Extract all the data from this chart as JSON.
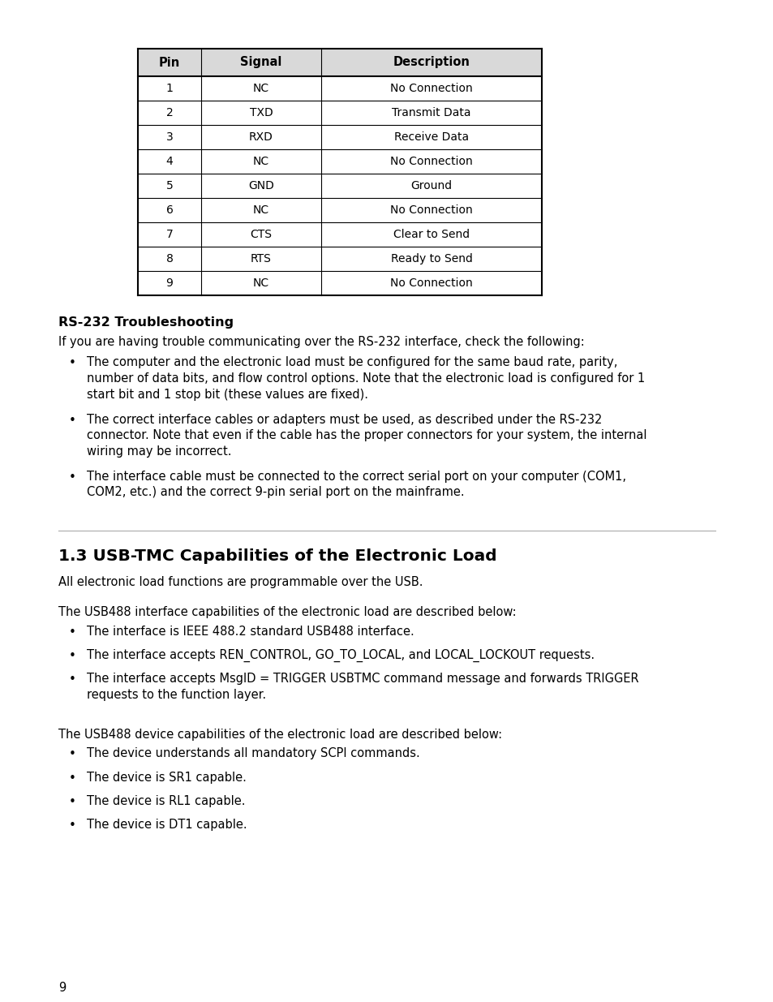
{
  "table_headers": [
    "Pin",
    "Signal",
    "Description"
  ],
  "table_rows": [
    [
      "1",
      "NC",
      "No Connection"
    ],
    [
      "2",
      "TXD",
      "Transmit Data"
    ],
    [
      "3",
      "RXD",
      "Receive Data"
    ],
    [
      "4",
      "NC",
      "No Connection"
    ],
    [
      "5",
      "GND",
      "Ground"
    ],
    [
      "6",
      "NC",
      "No Connection"
    ],
    [
      "7",
      "CTS",
      "Clear to Send"
    ],
    [
      "8",
      "RTS",
      "Ready to Send"
    ],
    [
      "9",
      "NC",
      "No Connection"
    ]
  ],
  "header_bg": "#d9d9d9",
  "border_color": "#000000",
  "section1_title": "RS-232 Troubleshooting",
  "section1_intro": "If you are having trouble communicating over the RS-232 interface, check the following:",
  "section1_bullet1_lines": [
    "The computer and the electronic load must be configured for the same baud rate, parity,",
    "number of data bits, and flow control options. Note that the electronic load is configured for 1",
    "start bit and 1 stop bit (these values are fixed)."
  ],
  "section1_bullet2_lines": [
    "The correct interface cables or adapters must be used, as described under the RS-232",
    "connector. Note that even if the cable has the proper connectors for your system, the internal",
    "wiring may be incorrect."
  ],
  "section1_bullet3_lines": [
    "The interface cable must be connected to the correct serial port on your computer (COM1,",
    "COM2, etc.) and the correct 9-pin serial port on the mainframe."
  ],
  "section2_title": "1.3 USB-TMC Capabilities of the Electronic Load",
  "section2_intro": "All electronic load functions are programmable over the USB.",
  "section2_para1": "The USB488 interface capabilities of the electronic load are described below:",
  "section2_bullet1_1_lines": [
    "The interface is IEEE 488.2 standard USB488 interface."
  ],
  "section2_bullet1_2_lines": [
    "The interface accepts REN_CONTROL, GO_TO_LOCAL, and LOCAL_LOCKOUT requests."
  ],
  "section2_bullet1_3_lines": [
    "The interface accepts MsgID = TRIGGER USBTMC command message and forwards TRIGGER",
    "requests to the function layer."
  ],
  "section2_para2": "The USB488 device capabilities of the electronic load are described below:",
  "section2_bullet2_1_lines": [
    "The device understands all mandatory SCPI commands."
  ],
  "section2_bullet2_2_lines": [
    "The device is SR1 capable."
  ],
  "section2_bullet2_3_lines": [
    "The device is RL1 capable."
  ],
  "section2_bullet2_4_lines": [
    "The device is DT1 capable."
  ],
  "page_number": "9",
  "bg_color": "#ffffff",
  "text_color": "#000000"
}
